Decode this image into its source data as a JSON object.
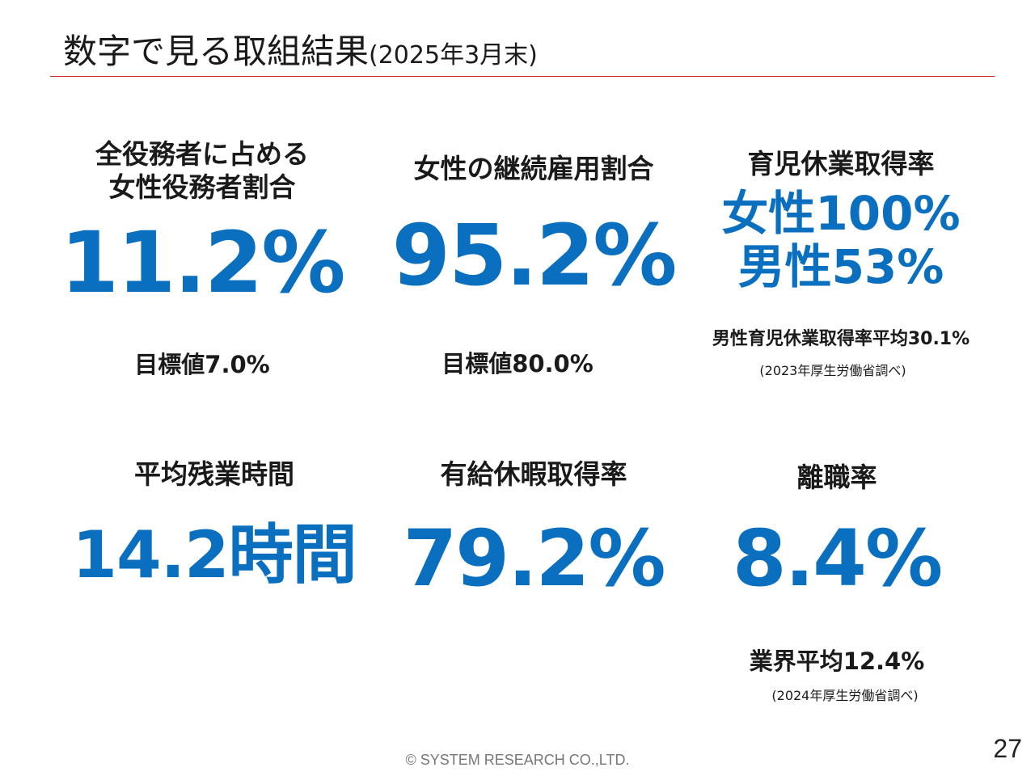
{
  "header": {
    "title": "数字で見る取組結果",
    "subtitle": "(2025年3月末)"
  },
  "metrics": [
    {
      "label_lines": [
        "全役務者に占める",
        "女性役務者割合"
      ],
      "value": "11.2%",
      "note": "目標値7.0%"
    },
    {
      "label": "女性の継続雇用割合",
      "value": "95.2%",
      "note": "目標値80.0%"
    },
    {
      "label": "育児休業取得率",
      "value_lines": [
        "女性100%",
        "男性53%"
      ],
      "note": "男性育児休業取得率平均30.1%",
      "source": "(2023年厚生労働省調べ)"
    },
    {
      "label": "平均残業時間",
      "value": "14.2時間"
    },
    {
      "label": "有給休暇取得率",
      "value": "79.2%"
    },
    {
      "label": "離職率",
      "value": "8.4%",
      "note": "業界平均12.4%",
      "source": "(2024年厚生労働省調べ)"
    }
  ],
  "footer": {
    "copyright": "© SYSTEM RESEARCH CO.,LTD.",
    "page_number": "27"
  },
  "colors": {
    "accent": "#0a6fbf",
    "rule": "#d62a2a"
  }
}
